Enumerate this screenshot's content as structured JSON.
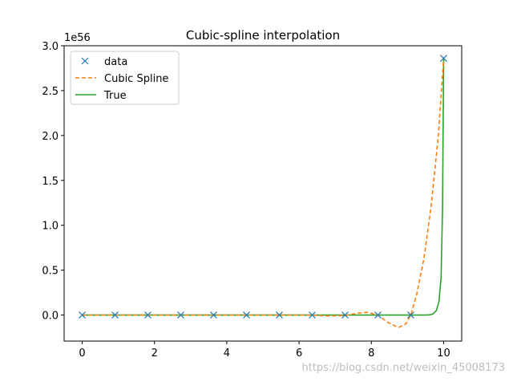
{
  "chart_data": {
    "type": "line",
    "title": "Cubic-spline interpolation",
    "xlabel": "",
    "ylabel": "",
    "y_offset_label": "1e56",
    "xlim": [
      -0.5,
      10.5
    ],
    "ylim": [
      -0.29,
      3.0
    ],
    "xticks": [
      0,
      2,
      4,
      6,
      8,
      10
    ],
    "xtick_labels": [
      "0",
      "2",
      "4",
      "6",
      "8",
      "10"
    ],
    "yticks": [
      0.0,
      0.5,
      1.0,
      1.5,
      2.0,
      2.5,
      3.0
    ],
    "ytick_labels": [
      "0.0",
      "0.5",
      "1.0",
      "1.5",
      "2.0",
      "2.5",
      "3.0"
    ],
    "grid": false,
    "legend_position": "top-left",
    "series": [
      {
        "name": "data",
        "style": "marker-x",
        "color": "#1f77b4",
        "x": [
          0,
          0.909,
          1.818,
          2.727,
          3.636,
          4.545,
          5.455,
          6.364,
          7.273,
          8.182,
          9.091,
          10.0
        ],
        "y": [
          0,
          0,
          0,
          0,
          0,
          0,
          0,
          0,
          0,
          0,
          0,
          2.86
        ]
      },
      {
        "name": "Cubic Spline",
        "style": "dashed",
        "color": "#ff7f0e",
        "x": [
          0,
          5.455,
          6.364,
          6.8,
          7.273,
          7.6,
          7.9,
          8.182,
          8.45,
          8.75,
          8.95,
          9.091,
          9.25,
          9.45,
          9.65,
          9.85,
          10.0
        ],
        "y": [
          0,
          0,
          0,
          -0.01,
          -0.005,
          0.02,
          0.03,
          0.0,
          -0.08,
          -0.14,
          -0.1,
          0.0,
          0.22,
          0.62,
          1.2,
          1.98,
          2.86
        ]
      },
      {
        "name": "True",
        "style": "solid",
        "color": "#2ca02c",
        "x": [
          0,
          9.5,
          9.6,
          9.7,
          9.8,
          9.87,
          9.93,
          9.97,
          10.0
        ],
        "y": [
          0,
          0,
          0.002,
          0.01,
          0.05,
          0.15,
          0.42,
          1.2,
          2.86
        ]
      }
    ]
  },
  "watermark": "https://blog.csdn.net/weixin_45008173"
}
